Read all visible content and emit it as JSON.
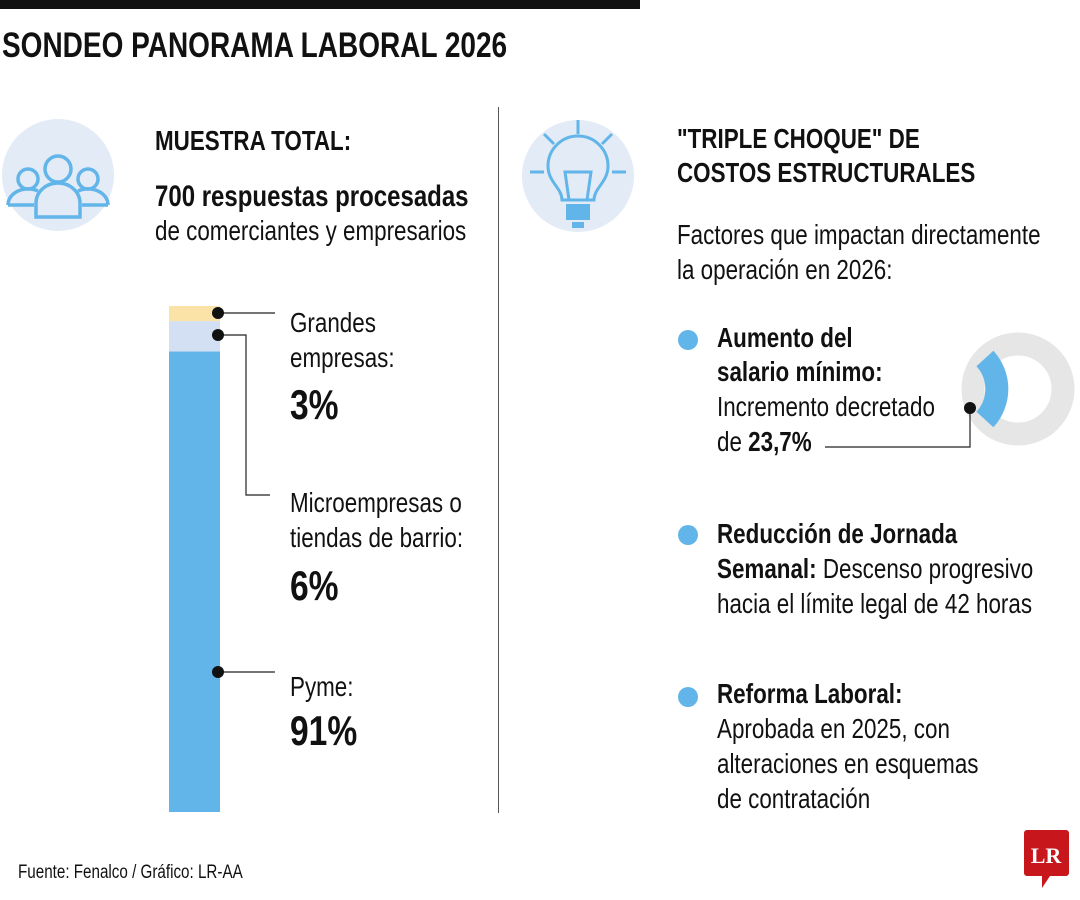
{
  "title": "SONDEO PANORAMA LABORAL 2026",
  "left": {
    "icon": "people-group-icon",
    "heading": "MUESTRA TOTAL:",
    "subheading": "700 respuestas procesadas",
    "description": "de comerciantes y empresarios",
    "segments": [
      {
        "label_line1": "Grandes",
        "label_line2": "empresas:",
        "value_label": "3%"
      },
      {
        "label_line1": "Microempresas o",
        "label_line2": "tiendas de barrio:",
        "value_label": "6%"
      },
      {
        "label_line1": "Pyme:",
        "value_label": "91%"
      }
    ]
  },
  "right": {
    "icon": "lightbulb-icon",
    "heading_line1": "\"TRIPLE CHOQUE\" DE",
    "heading_line2": "COSTOS ESTRUCTURALES",
    "intro_line1": "Factores que impactan directamente",
    "intro_line2": "la operación en 2026:",
    "factors": [
      {
        "title_line1": "Aumento del",
        "title_line2": "salario mínimo:",
        "text_line1": "Incremento decretado",
        "text_prefix": "de",
        "text_value": "23,7%"
      },
      {
        "title_line1": "Reducción de Jornada",
        "title_line2": "Semanal:",
        "text_line1": "Descenso progresivo",
        "text_line2": "hacia el límite legal de 42 horas"
      },
      {
        "title_line1": "Reforma Laboral:",
        "text_line1": "Aprobada en 2025, con",
        "text_line2": "alteraciones en esquemas",
        "text_line3": "de contratación"
      }
    ]
  },
  "source": "Fuente: Fenalco / Gráfico: LR-AA",
  "logo": "LR",
  "colors": {
    "pyme": "#62b5e8",
    "micro": "#d3dff2",
    "grandes": "#fbe3a8",
    "donut_rest": "#e6e6e6",
    "logo": "#c8161d"
  },
  "chart_data": [
    {
      "type": "bar",
      "stacked": true,
      "title": "Muestra total",
      "categories": [
        "Grandes empresas",
        "Microempresas o tiendas de barrio",
        "Pyme"
      ],
      "values": [
        3,
        6,
        91
      ],
      "unit": "%"
    },
    {
      "type": "pie",
      "donut": true,
      "title": "Aumento del salario mínimo",
      "categories": [
        "Incremento",
        "Resto"
      ],
      "values": [
        23.7,
        76.3
      ],
      "unit": "%"
    }
  ]
}
